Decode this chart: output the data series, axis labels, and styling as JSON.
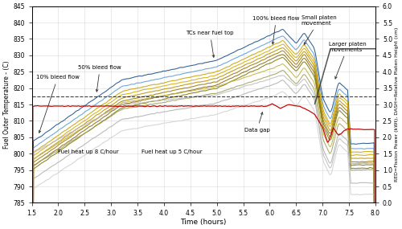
{
  "xlim": [
    1.5,
    8.0
  ],
  "ylim_left": [
    785,
    845
  ],
  "ylim_right": [
    0.0,
    6.0
  ],
  "xticks": [
    1.5,
    2.0,
    2.5,
    3.0,
    3.5,
    4.0,
    4.5,
    5.0,
    5.5,
    6.0,
    6.5,
    7.0,
    7.5,
    8.0
  ],
  "yticks_left": [
    785,
    790,
    795,
    800,
    805,
    810,
    815,
    820,
    825,
    830,
    835,
    840,
    845
  ],
  "yticks_right": [
    0.0,
    0.5,
    1.0,
    1.5,
    2.0,
    2.5,
    3.0,
    3.5,
    4.0,
    4.5,
    5.0,
    5.5,
    6.0
  ],
  "xlabel": "Time (hours)",
  "ylabel_left": "Fuel Outer Temperature - (C)",
  "ylabel_right": "RED=Fission Power (kWt), DASH=Relative Platen Height (cm)",
  "dashed_line_y": 817.5,
  "fission_power_color": "#c00000",
  "tc_colors": [
    "#1a4f8a",
    "#5b9bd5",
    "#c8a000",
    "#d4aa00",
    "#b89000",
    "#9b7a00",
    "#8b6914",
    "#7a7a00",
    "#c0b040",
    "#a0a060",
    "#b0b0b0",
    "#d0d0d0"
  ],
  "tc_params": [
    [
      803.5,
      822.5,
      828.5,
      836.5,
      803.0
    ],
    [
      801.5,
      820.5,
      826.5,
      834.5,
      801.5
    ],
    [
      800.0,
      819.0,
      825.0,
      833.0,
      800.5
    ],
    [
      799.0,
      818.0,
      824.0,
      832.0,
      799.5
    ],
    [
      798.0,
      817.0,
      823.0,
      831.0,
      798.5
    ],
    [
      797.0,
      816.0,
      822.0,
      830.0,
      797.5
    ],
    [
      796.0,
      815.0,
      821.0,
      829.0,
      796.5
    ],
    [
      795.0,
      814.0,
      820.0,
      828.0,
      795.5
    ],
    [
      798.0,
      815.5,
      820.5,
      826.0,
      797.0
    ],
    [
      796.0,
      813.5,
      818.5,
      824.0,
      795.0
    ],
    [
      792.0,
      810.5,
      815.5,
      821.0,
      791.0
    ],
    [
      789.0,
      807.0,
      812.0,
      817.5,
      787.5
    ]
  ],
  "gray_tc_color": "#c0c0c0",
  "gray_tc_params": [
    800.0,
    815.0,
    818.0,
    823.0,
    797.0
  ]
}
